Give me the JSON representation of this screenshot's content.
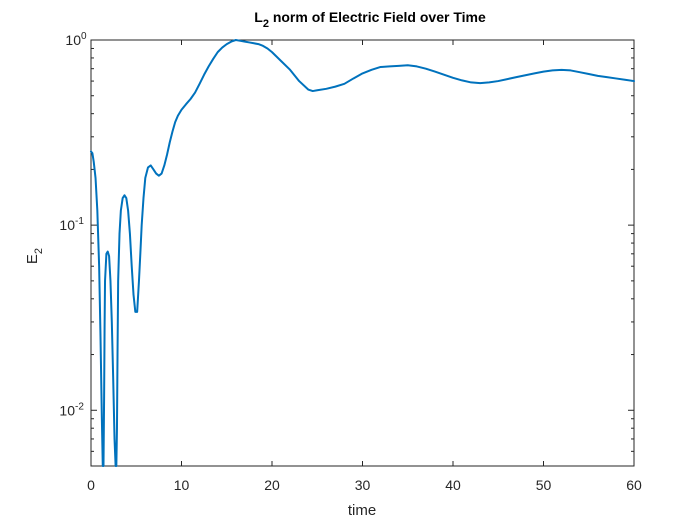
{
  "chart_data": {
    "type": "line",
    "title": {
      "main": "L",
      "sub": "2",
      "rest": " norm of Electric Field over Time"
    },
    "xlabel": "time",
    "ylabel": {
      "main": "E",
      "sub": "2"
    },
    "xlim": [
      0,
      60
    ],
    "ylim": [
      0.005,
      1
    ],
    "yscale": "log",
    "grid": false,
    "box": true,
    "x_ticks": [
      0,
      10,
      20,
      30,
      40,
      50,
      60
    ],
    "x_tick_labels": [
      "0",
      "10",
      "20",
      "30",
      "40",
      "50",
      "60"
    ],
    "y_ticks": [
      {
        "value": 1,
        "base": "10",
        "exp": "0"
      },
      {
        "value": 0.1,
        "base": "10",
        "exp": "-1"
      },
      {
        "value": 0.01,
        "base": "10",
        "exp": "-2"
      }
    ],
    "series": [
      {
        "color": "#0072BD",
        "x": [
          0,
          0.15,
          0.3,
          0.5,
          0.7,
          0.9,
          1.05,
          1.2,
          1.3,
          1.38,
          1.45,
          1.5,
          1.55,
          1.7,
          1.85,
          2.0,
          2.15,
          2.3,
          2.45,
          2.6,
          2.72,
          2.8,
          2.87,
          2.93,
          3.0,
          3.15,
          3.3,
          3.5,
          3.7,
          3.9,
          4.1,
          4.3,
          4.5,
          4.7,
          4.9,
          5.1,
          5.3,
          5.45,
          5.6,
          5.8,
          6.0,
          6.3,
          6.6,
          6.9,
          7.2,
          7.5,
          7.8,
          8.1,
          8.4,
          8.7,
          9.0,
          9.3,
          9.6,
          10.0,
          10.5,
          11.0,
          11.5,
          12.0,
          12.5,
          13.0,
          13.5,
          14.0,
          14.5,
          15.0,
          15.5,
          16.0,
          16.5,
          17.0,
          17.5,
          18.0,
          18.5,
          19.0,
          19.5,
          20.0,
          21.0,
          22.0,
          23.0,
          24.0,
          24.5,
          25.0,
          26.0,
          27.0,
          28.0,
          29.0,
          30.0,
          31.0,
          32.0,
          33.0,
          34.0,
          35.0,
          36.0,
          37.0,
          38.0,
          39.0,
          40.0,
          41.0,
          42.0,
          43.0,
          44.0,
          45.0,
          46.0,
          47.0,
          48.0,
          49.0,
          50.0,
          51.0,
          52.0,
          53.0,
          54.0,
          55.0,
          56.0,
          57.0,
          58.0,
          59.0,
          60.0
        ],
        "y": [
          0.25,
          0.245,
          0.22,
          0.18,
          0.12,
          0.06,
          0.025,
          0.009,
          0.005,
          0.005,
          0.012,
          0.028,
          0.05,
          0.07,
          0.072,
          0.068,
          0.05,
          0.03,
          0.015,
          0.007,
          0.005,
          0.005,
          0.008,
          0.02,
          0.05,
          0.09,
          0.12,
          0.14,
          0.145,
          0.14,
          0.12,
          0.09,
          0.06,
          0.042,
          0.034,
          0.034,
          0.05,
          0.07,
          0.1,
          0.14,
          0.18,
          0.205,
          0.21,
          0.2,
          0.19,
          0.185,
          0.19,
          0.21,
          0.24,
          0.28,
          0.32,
          0.36,
          0.39,
          0.42,
          0.45,
          0.48,
          0.52,
          0.58,
          0.65,
          0.72,
          0.79,
          0.86,
          0.91,
          0.95,
          0.98,
          1.0,
          0.99,
          0.98,
          0.97,
          0.96,
          0.95,
          0.93,
          0.9,
          0.86,
          0.77,
          0.69,
          0.6,
          0.54,
          0.53,
          0.535,
          0.545,
          0.56,
          0.58,
          0.62,
          0.66,
          0.69,
          0.715,
          0.72,
          0.725,
          0.73,
          0.72,
          0.7,
          0.675,
          0.65,
          0.625,
          0.605,
          0.59,
          0.585,
          0.59,
          0.6,
          0.615,
          0.63,
          0.645,
          0.66,
          0.675,
          0.685,
          0.69,
          0.685,
          0.67,
          0.655,
          0.64,
          0.63,
          0.62,
          0.61,
          0.6
        ]
      }
    ]
  }
}
